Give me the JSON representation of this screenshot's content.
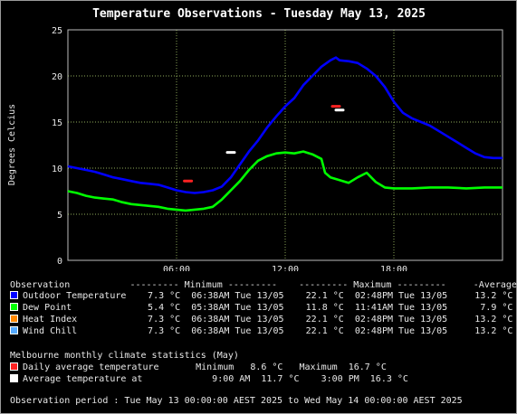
{
  "chart_data": {
    "type": "line",
    "title": "Temperature Observations - Tuesday May 13, 2025",
    "ylabel": "Degrees Celcius",
    "xlabel": "",
    "ylim": [
      0,
      25
    ],
    "xlim": [
      0,
      24
    ],
    "yticks": [
      0,
      5,
      10,
      15,
      20,
      25
    ],
    "xticks": [
      6,
      12,
      18
    ],
    "xtick_labels": [
      "06:00",
      "12:00",
      "18:00"
    ],
    "grid": true,
    "series": [
      {
        "name": "Outdoor Temperature",
        "color": "#0000ff",
        "x": [
          0,
          0.5,
          1,
          1.5,
          2,
          2.5,
          3,
          3.5,
          4,
          4.5,
          5,
          5.5,
          6,
          6.5,
          7,
          7.5,
          8,
          8.5,
          9,
          9.5,
          10,
          10.5,
          11,
          11.5,
          12,
          12.5,
          13,
          13.5,
          14,
          14.5,
          14.8,
          15,
          15.5,
          16,
          16.5,
          17,
          17.5,
          18,
          18.5,
          19,
          19.5,
          20,
          20.5,
          21,
          21.5,
          22,
          22.5,
          23,
          23.5,
          24
        ],
        "y": [
          10.2,
          10.0,
          9.8,
          9.6,
          9.3,
          9.0,
          8.8,
          8.6,
          8.4,
          8.3,
          8.2,
          7.9,
          7.6,
          7.4,
          7.3,
          7.4,
          7.6,
          8.0,
          9.0,
          10.4,
          11.8,
          13.0,
          14.4,
          15.6,
          16.7,
          17.6,
          19.0,
          20.0,
          21.0,
          21.7,
          22.0,
          21.7,
          21.6,
          21.4,
          20.8,
          20.0,
          18.8,
          17.2,
          16.0,
          15.4,
          15.0,
          14.6,
          14.0,
          13.4,
          12.8,
          12.2,
          11.6,
          11.2,
          11.1,
          11.1
        ]
      },
      {
        "name": "Dew Point",
        "color": "#00ff00",
        "x": [
          0,
          0.5,
          1,
          1.5,
          2,
          2.5,
          3,
          3.5,
          4,
          4.5,
          5,
          5.5,
          6,
          6.5,
          7,
          7.5,
          8,
          8.5,
          9,
          9.5,
          10,
          10.5,
          11,
          11.5,
          12,
          12.5,
          13,
          13.5,
          14,
          14.2,
          14.5,
          15,
          15.5,
          16,
          16.5,
          17,
          17.5,
          18,
          19,
          20,
          21,
          22,
          23,
          24
        ],
        "y": [
          7.5,
          7.3,
          7.0,
          6.8,
          6.7,
          6.6,
          6.3,
          6.1,
          6.0,
          5.9,
          5.8,
          5.6,
          5.5,
          5.4,
          5.5,
          5.6,
          5.8,
          6.6,
          7.6,
          8.6,
          9.8,
          10.8,
          11.3,
          11.6,
          11.7,
          11.6,
          11.8,
          11.5,
          11.0,
          9.5,
          9.0,
          8.7,
          8.4,
          9.0,
          9.5,
          8.5,
          7.9,
          7.8,
          7.8,
          7.9,
          7.9,
          7.8,
          7.9,
          7.9
        ]
      },
      {
        "name": "Heat Index",
        "color": "#ff8800"
      },
      {
        "name": "Wind Chill",
        "color": "#55aaff"
      }
    ],
    "markers": [
      {
        "name": "Daily average temperature",
        "kind": "dash",
        "color": "#ff2222",
        "points": [
          {
            "x": 6.63,
            "y": 8.6
          },
          {
            "x": 14.8,
            "y": 16.7
          }
        ]
      },
      {
        "name": "Average temperature at",
        "kind": "dash",
        "color": "#ffffff",
        "points": [
          {
            "x": 9.0,
            "y": 11.7
          },
          {
            "x": 15.0,
            "y": 16.3
          }
        ]
      }
    ]
  },
  "y_axis_label": "Degrees Celcius",
  "legend": {
    "header": "Observation           --------- Minimum ---------    --------- Maximum ---------     -Average-",
    "rows": [
      {
        "label": "Outdoor Temperature",
        "color": "#0000ff",
        "stats": "   7.3 °C  06:38AM Tue 13/05    22.1 °C  02:48PM Tue 13/05     13.2 °C"
      },
      {
        "label": "Dew Point",
        "color": "#00ff00",
        "stats": "   5.4 °C  05:38AM Tue 13/05    11.8 °C  11:41AM Tue 13/05      7.9 °C"
      },
      {
        "label": "Heat Index",
        "color": "#ff8800",
        "stats": "   7.3 °C  06:38AM Tue 13/05    22.1 °C  02:48PM Tue 13/05     13.2 °C"
      },
      {
        "label": "Wind Chill",
        "color": "#55aaff",
        "stats": "   7.3 °C  06:38AM Tue 13/05    22.1 °C  02:48PM Tue 13/05     13.2 °C"
      }
    ]
  },
  "climate": {
    "title": "Melbourne monthly climate statistics (May)",
    "rows": [
      {
        "label": "Daily average temperature",
        "color": "#ff2222",
        "stats": "      Minimum   8.6 °C   Maximum  16.7 °C"
      },
      {
        "label": "Average temperature at",
        "color": "#ffffff",
        "stats": "         9:00 AM  11.7 °C    3:00 PM  16.3 °C"
      }
    ]
  },
  "period": "Observation period : Tue May 13 00:00:00 AEST 2025 to Wed May 14 00:00:00 AEST 2025"
}
